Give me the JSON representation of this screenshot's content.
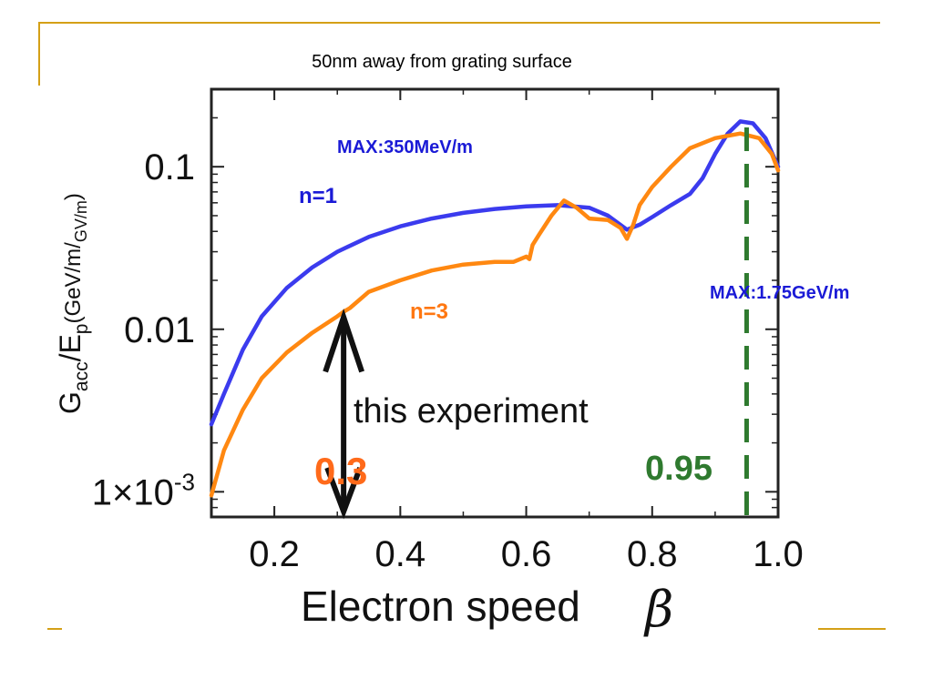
{
  "slide": {
    "subtitle": "50nm away from grating surface",
    "frame_color": "#d4a017"
  },
  "chart_data": {
    "type": "line",
    "title": "",
    "xlabel": "Electron speed",
    "xlabel_symbol": "β",
    "ylabel_parts": {
      "g": "G",
      "acc": "acc",
      "slash": "/E",
      "p": "p",
      "units_open": "(GeV/m/",
      "units_sub": "GV/m",
      "units_close": ")"
    },
    "xlim": [
      0.1,
      1.0
    ],
    "ylim": [
      0.0007,
      0.3
    ],
    "yscale": "log",
    "x_ticks": [
      {
        "value": 0.2,
        "label": "0.2"
      },
      {
        "value": 0.4,
        "label": "0.4"
      },
      {
        "value": 0.6,
        "label": "0.6"
      },
      {
        "value": 0.8,
        "label": "0.8"
      },
      {
        "value": 1.0,
        "label": "1.0"
      }
    ],
    "y_ticks": [
      {
        "value": 0.1,
        "label": "0.1"
      },
      {
        "value": 0.01,
        "label": "0.01"
      },
      {
        "value": 0.001,
        "label_main": "1×10",
        "label_exp": "-3"
      }
    ],
    "series": [
      {
        "name": "n=1",
        "color": "#3b3bee",
        "x": [
          0.1,
          0.12,
          0.15,
          0.18,
          0.22,
          0.26,
          0.3,
          0.35,
          0.4,
          0.45,
          0.5,
          0.55,
          0.6,
          0.65,
          0.7,
          0.73,
          0.76,
          0.78,
          0.8,
          0.83,
          0.86,
          0.88,
          0.9,
          0.92,
          0.94,
          0.96,
          0.98,
          1.0
        ],
        "y": [
          0.0026,
          0.004,
          0.0075,
          0.012,
          0.018,
          0.024,
          0.03,
          0.037,
          0.043,
          0.048,
          0.052,
          0.055,
          0.057,
          0.058,
          0.056,
          0.05,
          0.041,
          0.044,
          0.049,
          0.058,
          0.068,
          0.085,
          0.12,
          0.16,
          0.19,
          0.185,
          0.15,
          0.1
        ]
      },
      {
        "name": "n=3",
        "color": "#ff8811",
        "x": [
          0.1,
          0.12,
          0.15,
          0.18,
          0.22,
          0.26,
          0.3,
          0.31,
          0.32,
          0.35,
          0.4,
          0.45,
          0.5,
          0.55,
          0.58,
          0.6,
          0.605,
          0.61,
          0.62,
          0.64,
          0.66,
          0.68,
          0.7,
          0.73,
          0.75,
          0.76,
          0.77,
          0.78,
          0.8,
          0.83,
          0.86,
          0.9,
          0.94,
          0.97,
          0.99,
          1.0
        ],
        "y": [
          0.00095,
          0.0018,
          0.0032,
          0.005,
          0.0072,
          0.0095,
          0.012,
          0.0128,
          0.0135,
          0.017,
          0.02,
          0.023,
          0.025,
          0.026,
          0.026,
          0.028,
          0.027,
          0.033,
          0.038,
          0.05,
          0.062,
          0.056,
          0.048,
          0.047,
          0.042,
          0.036,
          0.044,
          0.058,
          0.075,
          0.1,
          0.13,
          0.15,
          0.16,
          0.15,
          0.12,
          0.095
        ]
      }
    ],
    "annotations": {
      "max_n1": {
        "text": "MAX:350MeV/m",
        "color": "#1a1ad6"
      },
      "n1_label": {
        "text": "n=1",
        "color": "#1a1ad6"
      },
      "n3_label": {
        "text": "n=3",
        "color": "#ff7711"
      },
      "max_n3": {
        "text": "MAX:1.75GeV/m",
        "color": "#1a1ad6"
      },
      "experiment": {
        "text": "this experiment",
        "color": "#111111",
        "arrow_x": 0.31,
        "arrow_y_top": 0.0125,
        "arrow_y_bottom": 0.00068
      },
      "beta_03": {
        "text": "0.3",
        "color": "#ff6a1a"
      },
      "beta_095": {
        "text": "0.95",
        "color": "#2f7a2f",
        "line_x": 0.95
      }
    }
  }
}
